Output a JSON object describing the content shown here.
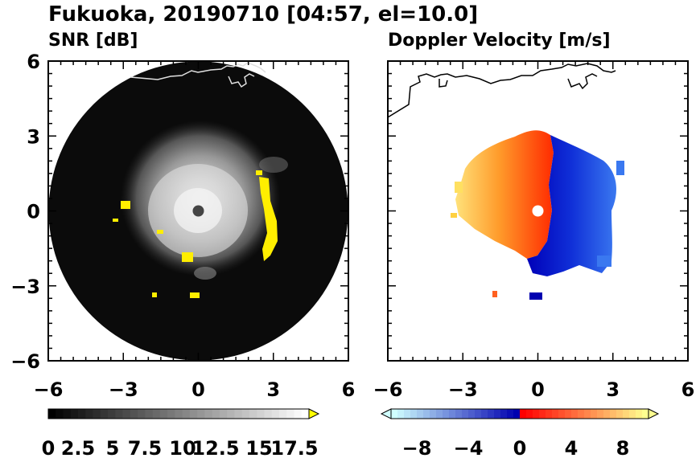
{
  "figure": {
    "title": "Fukuoka, 20190710 [04:57, el=10.0]"
  },
  "chart_data": [
    {
      "type": "heatmap",
      "title": "SNR [dB]",
      "xlabel": "",
      "ylabel": "",
      "xlim": [
        -6,
        6
      ],
      "ylim": [
        -6,
        6
      ],
      "xticks": [
        "-6",
        "-3",
        "0",
        "3",
        "6"
      ],
      "yticks": [
        "6",
        "3",
        "0",
        "-3",
        "-6"
      ],
      "colorbar": {
        "min": 0,
        "max": 17.5,
        "labels": [
          "0",
          "2.5",
          "5",
          "7.5",
          "10",
          "12.5",
          "15",
          "17.5"
        ],
        "colors": [
          "#000000",
          "#ffffff",
          "#ffff00"
        ]
      },
      "grid": false
    },
    {
      "type": "heatmap",
      "title": "Doppler Velocity [m/s]",
      "xlabel": "",
      "ylabel": "",
      "xlim": [
        -6,
        6
      ],
      "ylim": [
        -6,
        6
      ],
      "xticks": [
        "-6",
        "-3",
        "0",
        "3",
        "6"
      ],
      "yticks": [],
      "colorbar": {
        "min": -10,
        "max": 10,
        "labels": [
          "-8",
          "-4",
          "0",
          "4",
          "8"
        ],
        "colors": [
          "#d0ffff",
          "#0000b0",
          "#ff0000",
          "#ffff90"
        ]
      },
      "grid": false
    }
  ]
}
